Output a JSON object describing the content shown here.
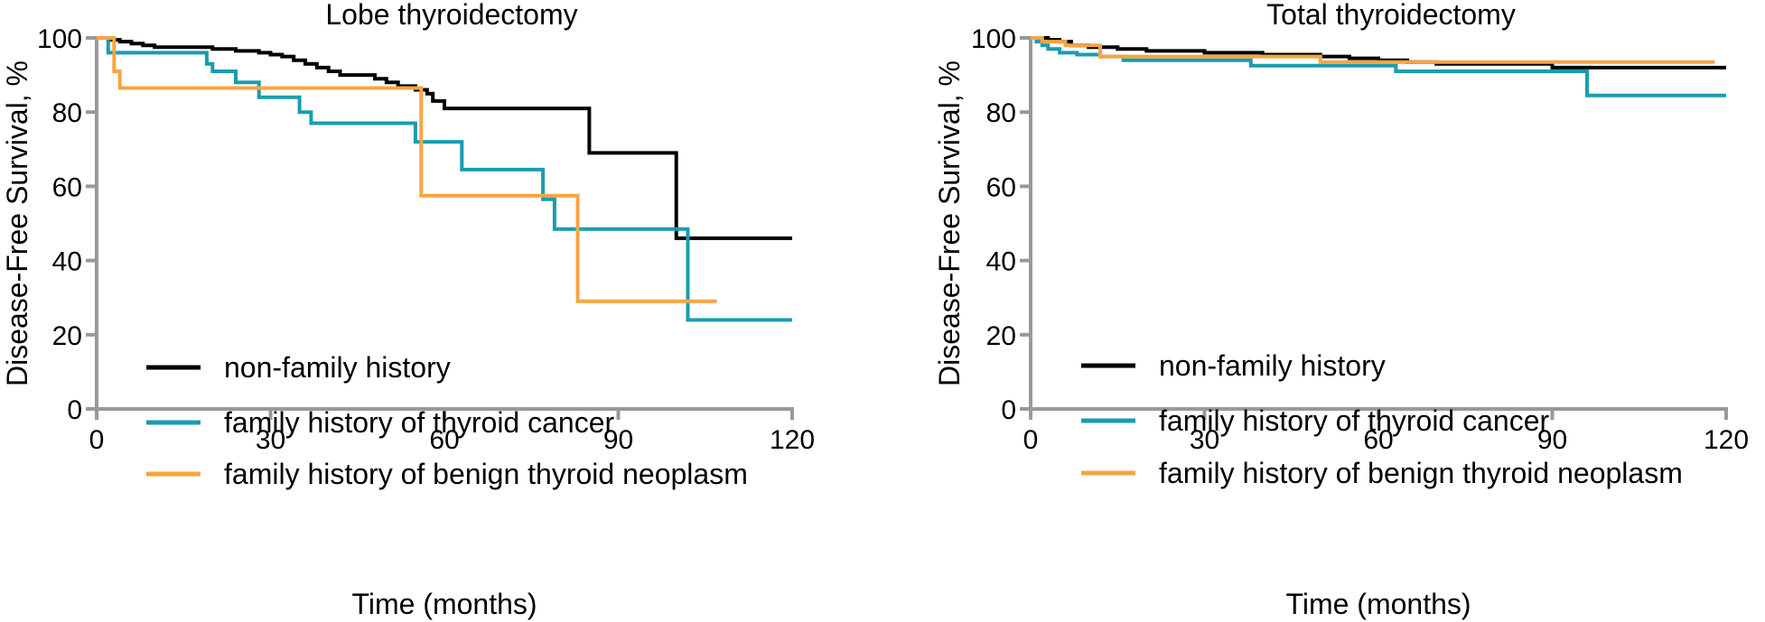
{
  "colors": {
    "non_family": "#000000",
    "family_cancer": "#1a9cb0",
    "family_benign": "#f7a541",
    "axis": "#999999"
  },
  "chart_data": [
    {
      "id": "lobe",
      "type": "line",
      "step": true,
      "title": "Lobe thyroidectomy",
      "xlabel": "Time (months)",
      "ylabel": "Disease-Free Survival, %",
      "xlim": [
        0,
        120
      ],
      "ylim": [
        0,
        100
      ],
      "xticks": [
        0,
        30,
        60,
        90,
        120
      ],
      "yticks": [
        0,
        20,
        40,
        60,
        80,
        100
      ],
      "grid": false,
      "legend_position": "bottom-left",
      "series": [
        {
          "name": "non-family history",
          "color_key": "non_family",
          "points": [
            [
              0,
              100
            ],
            [
              2,
              99.5
            ],
            [
              4,
              99
            ],
            [
              6,
              98.5
            ],
            [
              8,
              98
            ],
            [
              10,
              97.5
            ],
            [
              20,
              97
            ],
            [
              24,
              96.5
            ],
            [
              28,
              96
            ],
            [
              30,
              95.5
            ],
            [
              32,
              95
            ],
            [
              34,
              94
            ],
            [
              36,
              93
            ],
            [
              38,
              92
            ],
            [
              40,
              91
            ],
            [
              42,
              90
            ],
            [
              48,
              89
            ],
            [
              50,
              88
            ],
            [
              52,
              87
            ],
            [
              55,
              86
            ],
            [
              57,
              85
            ],
            [
              58,
              83
            ],
            [
              60,
              81
            ],
            [
              85,
              69
            ],
            [
              100,
              46
            ],
            [
              120,
              46
            ]
          ]
        },
        {
          "name": "family history of thyroid cancer",
          "color_key": "family_cancer",
          "points": [
            [
              0,
              100
            ],
            [
              2,
              96
            ],
            [
              19,
              93
            ],
            [
              20,
              91
            ],
            [
              24,
              88
            ],
            [
              28,
              84
            ],
            [
              35,
              80
            ],
            [
              37,
              77
            ],
            [
              55,
              72
            ],
            [
              63,
              64.5
            ],
            [
              77,
              56.5
            ],
            [
              79,
              48.5
            ],
            [
              102,
              24
            ],
            [
              120,
              24
            ]
          ]
        },
        {
          "name": "family history of benign thyroid neoplasm",
          "color_key": "family_benign",
          "points": [
            [
              0,
              100
            ],
            [
              3,
              91
            ],
            [
              4,
              86.5
            ],
            [
              56,
              57.5
            ],
            [
              83,
              29
            ],
            [
              107,
              29
            ]
          ]
        }
      ]
    },
    {
      "id": "total",
      "type": "line",
      "step": true,
      "title": "Total thyroidectomy",
      "xlabel": "Time (months)",
      "ylabel": "Disease-Free Survival, %",
      "xlim": [
        0,
        120
      ],
      "ylim": [
        0,
        100
      ],
      "xticks": [
        0,
        30,
        60,
        90,
        120
      ],
      "yticks": [
        0,
        20,
        40,
        60,
        80,
        100
      ],
      "grid": false,
      "legend_position": "bottom-left",
      "series": [
        {
          "name": "non-family history",
          "color_key": "non_family",
          "points": [
            [
              0,
              100
            ],
            [
              3,
              99.5
            ],
            [
              5,
              99
            ],
            [
              7,
              98
            ],
            [
              10,
              97.5
            ],
            [
              15,
              97
            ],
            [
              20,
              96.5
            ],
            [
              30,
              96
            ],
            [
              40,
              95.5
            ],
            [
              50,
              95
            ],
            [
              55,
              94.5
            ],
            [
              60,
              94
            ],
            [
              65,
              93.5
            ],
            [
              70,
              93
            ],
            [
              90,
              92
            ],
            [
              120,
              92
            ]
          ]
        },
        {
          "name": "family history of thyroid cancer",
          "color_key": "family_cancer",
          "points": [
            [
              0,
              100
            ],
            [
              1,
              99
            ],
            [
              2,
              98
            ],
            [
              3,
              97
            ],
            [
              5,
              96
            ],
            [
              8,
              95.5
            ],
            [
              12,
              95
            ],
            [
              16,
              94
            ],
            [
              38,
              92.5
            ],
            [
              63,
              91
            ],
            [
              96,
              84.5
            ],
            [
              120,
              84.5
            ]
          ]
        },
        {
          "name": "family history of benign thyroid neoplasm",
          "color_key": "family_benign",
          "points": [
            [
              0,
              100
            ],
            [
              2,
              99
            ],
            [
              6,
              98
            ],
            [
              12,
              95
            ],
            [
              50,
              93.5
            ],
            [
              118,
              93.5
            ]
          ]
        }
      ]
    }
  ]
}
